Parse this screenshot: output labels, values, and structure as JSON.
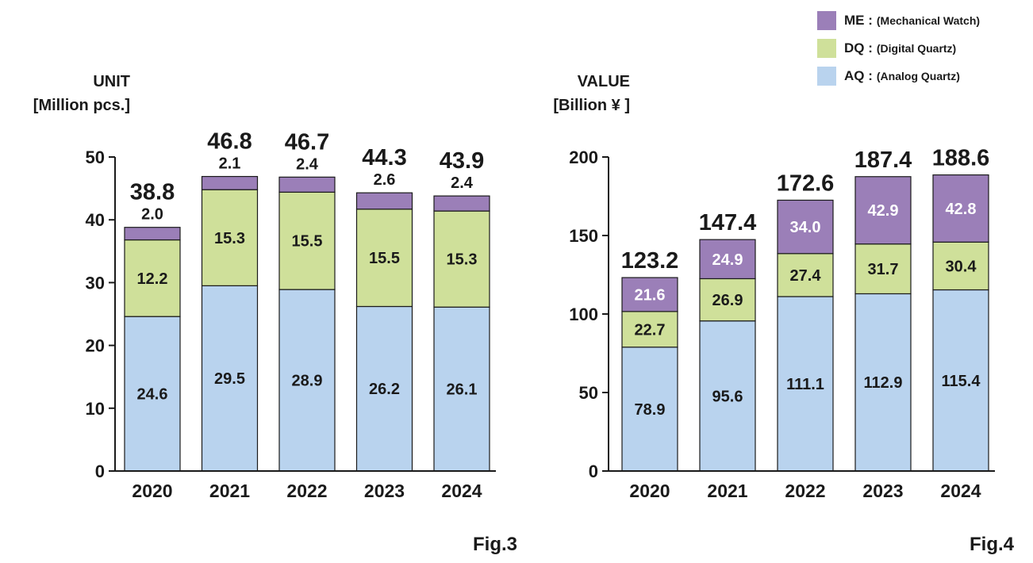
{
  "legend": {
    "me": {
      "key": "ME :",
      "desc": "(Mechanical Watch)",
      "color": "#9b7fb8"
    },
    "dq": {
      "key": "DQ :",
      "desc": "(Digital Quartz)",
      "color": "#cfe09a"
    },
    "aq": {
      "key": "AQ :",
      "desc": "(Analog Quartz)",
      "color": "#b9d3ee"
    }
  },
  "chart_data": [
    {
      "type": "bar",
      "stacked": true,
      "figure": "Fig.3",
      "ylabel_line1": "UNIT",
      "ylabel_line2": "[Million pcs.]",
      "categories": [
        "2020",
        "2021",
        "2022",
        "2023",
        "2024"
      ],
      "ylim": [
        0,
        50
      ],
      "yticks": [
        0,
        10,
        20,
        30,
        40,
        50
      ],
      "series": [
        {
          "name": "AQ",
          "values": [
            24.6,
            29.5,
            28.9,
            26.2,
            26.1
          ]
        },
        {
          "name": "DQ",
          "values": [
            12.2,
            15.3,
            15.5,
            15.5,
            15.3
          ]
        },
        {
          "name": "ME",
          "values": [
            2.0,
            2.1,
            2.4,
            2.6,
            2.4
          ]
        }
      ],
      "totals": [
        38.8,
        46.8,
        46.7,
        44.3,
        43.9
      ],
      "segment_labels": {
        "AQ": [
          "24.6",
          "29.5",
          "28.9",
          "26.2",
          "26.1"
        ],
        "DQ": [
          "12.2",
          "15.3",
          "15.5",
          "15.5",
          "15.3"
        ],
        "ME": [
          "2.0",
          "2.1",
          "2.4",
          "2.6",
          "2.4"
        ]
      },
      "total_labels": [
        "38.8",
        "46.8",
        "46.7",
        "44.3",
        "43.9"
      ],
      "ytick_labels": [
        "0",
        "10",
        "20",
        "30",
        "40",
        "50"
      ],
      "me_label_position": "above"
    },
    {
      "type": "bar",
      "stacked": true,
      "figure": "Fig.4",
      "ylabel_line1": "VALUE",
      "ylabel_line2": "[Billion ¥ ]",
      "categories": [
        "2020",
        "2021",
        "2022",
        "2023",
        "2024"
      ],
      "ylim": [
        0,
        200
      ],
      "yticks": [
        0,
        50,
        100,
        150,
        200
      ],
      "series": [
        {
          "name": "AQ",
          "values": [
            78.9,
            95.6,
            111.1,
            112.9,
            115.4
          ]
        },
        {
          "name": "DQ",
          "values": [
            22.7,
            26.9,
            27.4,
            31.7,
            30.4
          ]
        },
        {
          "name": "ME",
          "values": [
            21.6,
            24.9,
            34.0,
            42.9,
            42.8
          ]
        }
      ],
      "totals": [
        123.2,
        147.4,
        172.6,
        187.4,
        188.6
      ],
      "segment_labels": {
        "AQ": [
          "78.9",
          "95.6",
          "111.1",
          "112.9",
          "115.4"
        ],
        "DQ": [
          "22.7",
          "26.9",
          "27.4",
          "31.7",
          "30.4"
        ],
        "ME": [
          "21.6",
          "24.9",
          "34.0",
          "42.9",
          "42.8"
        ]
      },
      "total_labels": [
        "123.2",
        "147.4",
        "172.6",
        "187.4",
        "188.6"
      ],
      "ytick_labels": [
        "0",
        "50",
        "100",
        "150",
        "200"
      ],
      "me_label_position": "inside"
    }
  ]
}
